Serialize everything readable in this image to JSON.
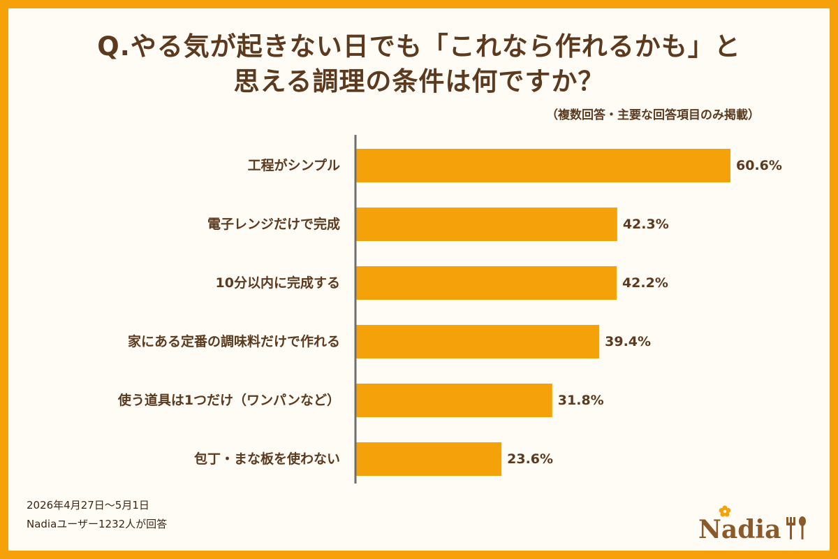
{
  "title_line1": "Q.やる気が起きない日でも「これなら作れるかも」と",
  "title_line2": "思える調理の条件は何ですか？",
  "note": "（複数回答・主要な回答項目のみ掲載）",
  "footer": {
    "date": "2026年4月27日～5月1日",
    "respondents": "Nadiaユーザー1232人が回答"
  },
  "logo_text": "Nadia",
  "colors": {
    "background": "#F5A20A",
    "bar": "#F5A20A",
    "text": "#5B3A1F",
    "axis": "#6E6E6E"
  },
  "chart_data": {
    "type": "bar",
    "orientation": "horizontal",
    "categories": [
      "工程がシンプル",
      "電子レンジだけで完成",
      "10分以内に完成する",
      "家にある定番の調味料だけで作れる",
      "使う道具は1つだけ（ワンパンなど）",
      "包丁・まな板を使わない"
    ],
    "values": [
      60.6,
      42.3,
      42.2,
      39.4,
      31.8,
      23.6
    ],
    "value_labels": [
      "60.6%",
      "42.3%",
      "42.2%",
      "39.4%",
      "31.8%",
      "23.6%"
    ],
    "unit": "%",
    "xlim": [
      0,
      60.6
    ],
    "grid": false,
    "legend": false
  }
}
